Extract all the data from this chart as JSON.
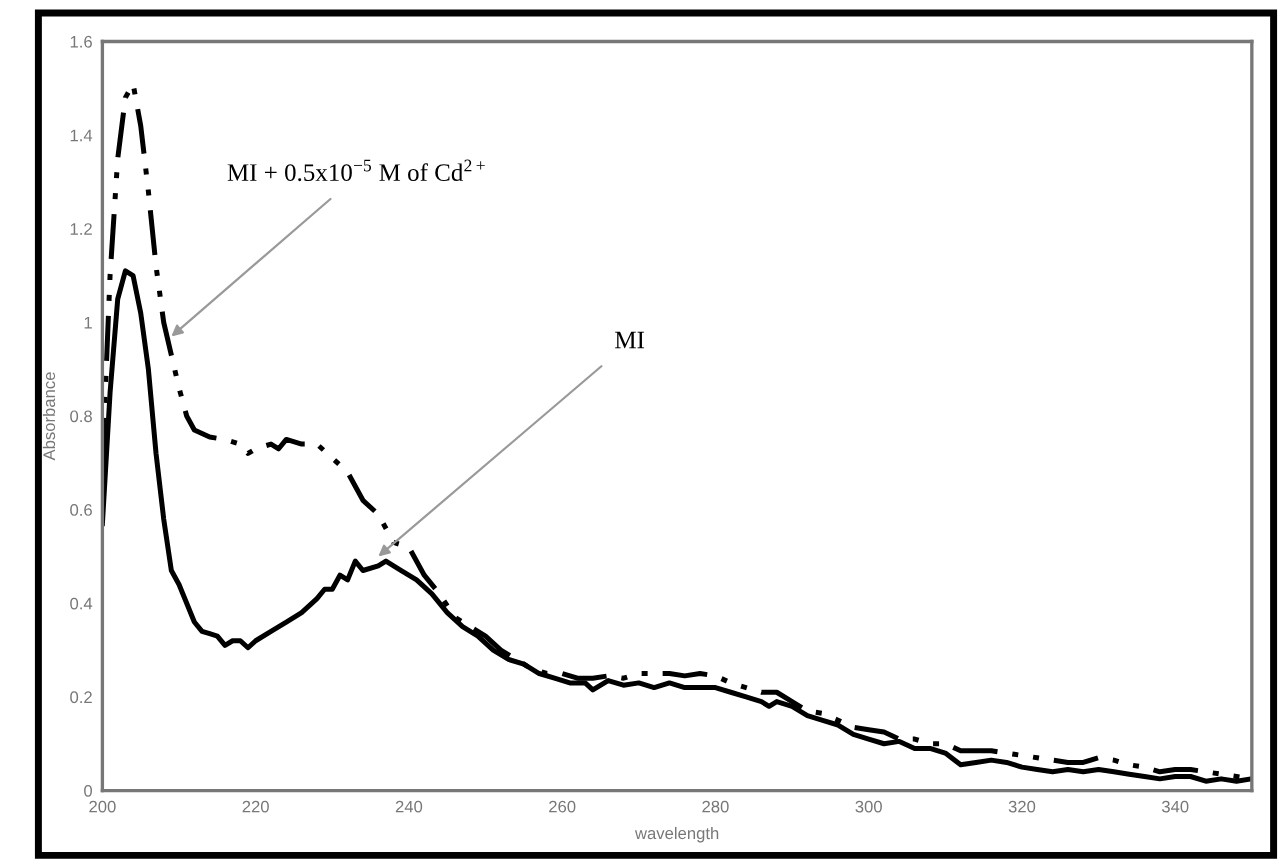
{
  "chart_data": {
    "type": "line",
    "xlabel": "wavelength",
    "ylabel": "Absorbance",
    "xlim": [
      200,
      350
    ],
    "xticks": [
      200,
      220,
      240,
      260,
      280,
      300,
      320,
      340
    ],
    "ylim": [
      0,
      1.6
    ],
    "yticks": [
      0,
      0.2,
      0.4,
      0.6,
      0.8,
      1,
      1.2,
      1.4,
      1.6
    ],
    "marker": "none",
    "series": [
      {
        "color": "#000000",
        "line_style": "solid",
        "x": [
          200,
          201,
          202,
          203,
          204,
          205,
          206,
          207,
          208,
          209,
          210,
          211,
          212,
          213,
          214,
          215,
          216,
          217,
          218,
          219,
          220,
          222,
          224,
          226,
          228,
          229,
          230,
          231,
          232,
          233,
          234,
          236,
          237,
          239,
          241,
          243,
          245,
          247,
          249,
          251,
          253,
          255,
          257,
          259,
          261,
          263,
          264,
          266,
          268,
          270,
          272,
          274,
          276,
          278,
          280,
          282,
          284,
          286,
          287,
          288,
          290,
          292,
          294,
          296,
          298,
          300,
          302,
          304,
          306,
          308,
          310,
          312,
          314,
          316,
          318,
          320,
          322,
          324,
          326,
          328,
          330,
          332,
          334,
          336,
          338,
          340,
          342,
          344,
          346,
          348,
          350
        ],
        "values": [
          0.57,
          0.85,
          1.05,
          1.11,
          1.1,
          1.02,
          0.9,
          0.72,
          0.58,
          0.47,
          0.44,
          0.4,
          0.36,
          0.34,
          0.335,
          0.33,
          0.31,
          0.32,
          0.32,
          0.305,
          0.32,
          0.34,
          0.36,
          0.38,
          0.41,
          0.43,
          0.43,
          0.46,
          0.45,
          0.49,
          0.47,
          0.48,
          0.49,
          0.47,
          0.45,
          0.42,
          0.38,
          0.35,
          0.33,
          0.3,
          0.28,
          0.27,
          0.25,
          0.24,
          0.23,
          0.23,
          0.215,
          0.235,
          0.225,
          0.23,
          0.22,
          0.23,
          0.22,
          0.22,
          0.22,
          0.21,
          0.2,
          0.19,
          0.18,
          0.19,
          0.18,
          0.16,
          0.15,
          0.14,
          0.12,
          0.11,
          0.1,
          0.105,
          0.09,
          0.09,
          0.08,
          0.055,
          0.06,
          0.065,
          0.06,
          0.05,
          0.045,
          0.04,
          0.045,
          0.04,
          0.045,
          0.04,
          0.035,
          0.03,
          0.025,
          0.03,
          0.03,
          0.02,
          0.025,
          0.02,
          0.025
        ]
      },
      {
        "color": "#000000",
        "line_style": "dashed",
        "x": [
          200,
          201,
          202,
          203,
          204,
          205,
          206,
          207,
          208,
          209,
          210,
          211,
          212,
          214,
          216,
          218,
          219,
          220,
          222,
          223,
          224,
          226,
          228,
          230,
          232,
          234,
          236,
          238,
          240,
          242,
          244,
          246,
          248,
          250,
          252,
          254,
          256,
          258,
          260,
          262,
          264,
          266,
          268,
          270,
          272,
          274,
          276,
          278,
          280,
          282,
          284,
          286,
          288,
          290,
          292,
          294,
          296,
          298,
          300,
          302,
          304,
          306,
          308,
          310,
          312,
          314,
          316,
          318,
          320,
          322,
          324,
          326,
          328,
          330,
          332,
          334,
          336,
          338,
          340,
          342,
          344,
          346,
          348,
          350
        ],
        "values": [
          0.7,
          1.1,
          1.35,
          1.48,
          1.51,
          1.42,
          1.28,
          1.12,
          1.0,
          0.93,
          0.86,
          0.8,
          0.77,
          0.755,
          0.75,
          0.74,
          0.72,
          0.73,
          0.74,
          0.73,
          0.75,
          0.74,
          0.74,
          0.71,
          0.68,
          0.62,
          0.59,
          0.53,
          0.52,
          0.46,
          0.42,
          0.37,
          0.35,
          0.33,
          0.3,
          0.28,
          0.26,
          0.25,
          0.25,
          0.24,
          0.24,
          0.245,
          0.24,
          0.25,
          0.25,
          0.25,
          0.245,
          0.25,
          0.245,
          0.23,
          0.22,
          0.21,
          0.21,
          0.19,
          0.17,
          0.165,
          0.15,
          0.135,
          0.13,
          0.125,
          0.11,
          0.11,
          0.1,
          0.1,
          0.085,
          0.085,
          0.085,
          0.08,
          0.075,
          0.07,
          0.065,
          0.06,
          0.06,
          0.07,
          0.065,
          0.055,
          0.05,
          0.04,
          0.045,
          0.045,
          0.04,
          0.035,
          0.03,
          0.025
        ]
      }
    ],
    "annotations": [
      {
        "text": "MI + 0.5x10$^{−5}$ M of Cd$^{2+}$",
        "x": 209,
        "y": 0.97
      },
      {
        "text": "MI",
        "x": 236,
        "y": 0.5
      }
    ]
  }
}
